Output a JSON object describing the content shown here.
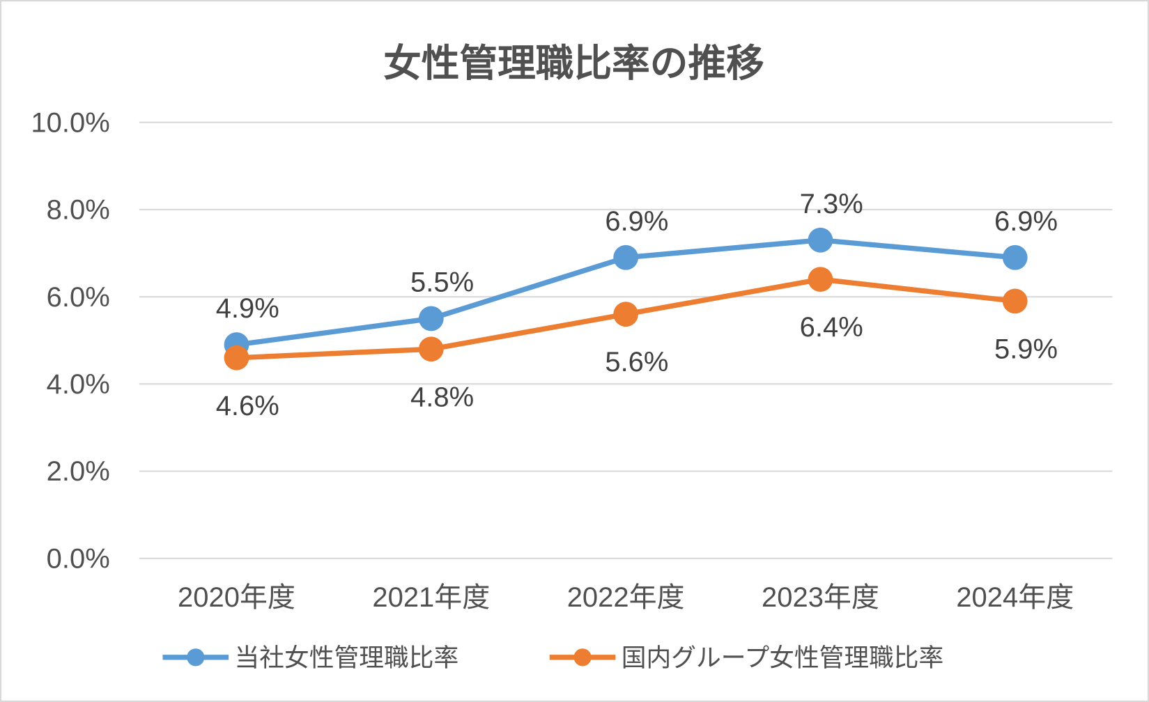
{
  "chart_data": {
    "type": "line",
    "title": "女性管理職比率の推移",
    "categories": [
      "2020年度",
      "2021年度",
      "2022年度",
      "2023年度",
      "2024年度"
    ],
    "yticks": [
      "0.0%",
      "2.0%",
      "4.0%",
      "6.0%",
      "8.0%",
      "10.0%"
    ],
    "ylim": [
      0,
      10
    ],
    "grid": true,
    "legend_position": "bottom",
    "series": [
      {
        "name": "当社女性管理職比率",
        "values": [
          4.9,
          5.5,
          6.9,
          7.3,
          6.9
        ],
        "labels": [
          "4.9%",
          "5.5%",
          "6.9%",
          "7.3%",
          "6.9%"
        ],
        "color": "#5B9BD5",
        "label_position": "above"
      },
      {
        "name": "国内グループ女性管理職比率",
        "values": [
          4.6,
          4.8,
          5.6,
          6.4,
          5.9
        ],
        "labels": [
          "4.6%",
          "4.8%",
          "5.6%",
          "6.4%",
          "5.9%"
        ],
        "color": "#ED7D31",
        "label_position": "below"
      }
    ]
  }
}
